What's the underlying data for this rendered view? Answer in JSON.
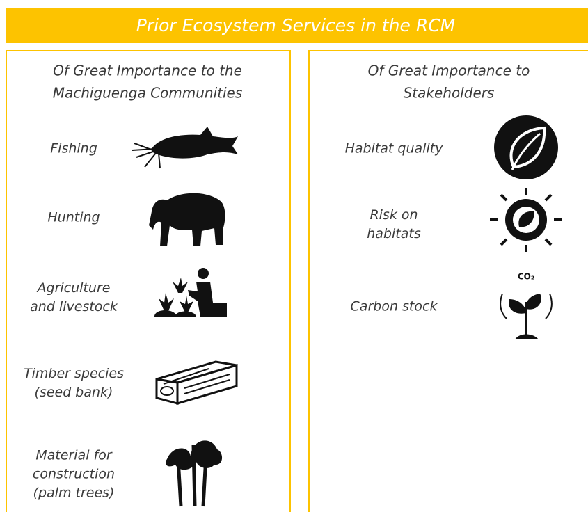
{
  "header": {
    "title": "Prior Ecosystem Services in the RCM"
  },
  "panels": [
    {
      "heading": [
        "Of Great Importance to the",
        "Machiguenga Communities"
      ],
      "items": [
        {
          "label": [
            "Fishing"
          ]
        },
        {
          "label": [
            "Hunting"
          ]
        },
        {
          "label": [
            "Agriculture",
            "and livestock"
          ]
        },
        {
          "label": [
            "Timber species",
            "(seed bank)"
          ]
        },
        {
          "label": [
            "Material for",
            "construction",
            "(palm trees)"
          ]
        }
      ]
    },
    {
      "heading": [
        "Of Great Importance to",
        "Stakeholders"
      ],
      "items": [
        {
          "label": [
            "Habitat quality"
          ]
        },
        {
          "label": [
            "Risk on",
            "habitats"
          ]
        },
        {
          "label": [
            "Carbon stock"
          ]
        }
      ]
    }
  ],
  "icon_text": "CO₂"
}
